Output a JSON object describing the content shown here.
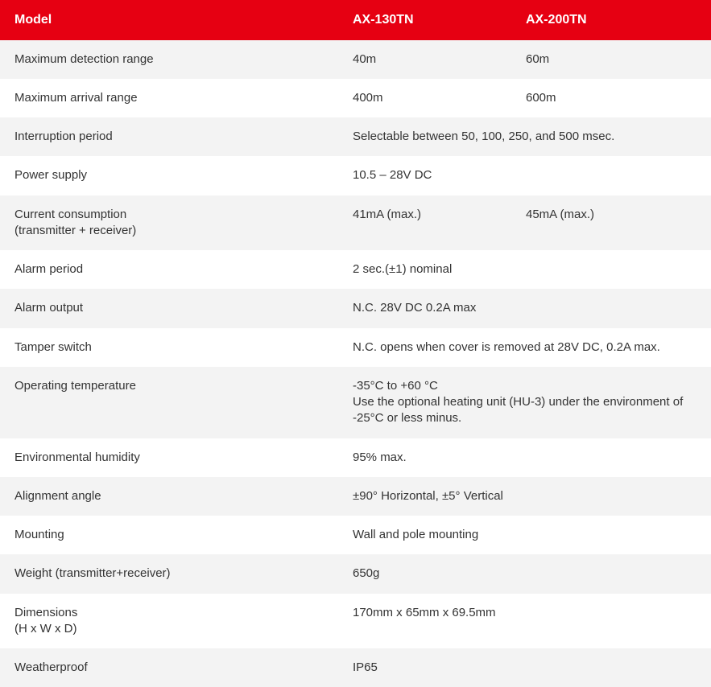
{
  "header": {
    "label_col": "Model",
    "model1": "AX-130TN",
    "model2": "AX-200TN"
  },
  "colors": {
    "header_bg": "#e60012",
    "header_text": "#ffffff",
    "row_odd_bg": "#f3f3f3",
    "row_even_bg": "#ffffff",
    "text": "#333333"
  },
  "rows": {
    "r0": {
      "label": "Maximum detection range",
      "v1": "40m",
      "v2": "60m"
    },
    "r1": {
      "label": "Maximum arrival range",
      "v1": "400m",
      "v2": "600m"
    },
    "r2": {
      "label": "Interruption period",
      "span": "Selectable between 50, 100, 250, and 500 msec."
    },
    "r3": {
      "label": "Power supply",
      "span": "10.5 – 28V DC"
    },
    "r4": {
      "label": "Current consumption",
      "label2": "(transmitter + receiver)",
      "v1": "41mA (max.)",
      "v2": "45mA (max.)"
    },
    "r5": {
      "label": "Alarm period",
      "span": "2 sec.(±1) nominal"
    },
    "r6": {
      "label": "Alarm output",
      "span": "N.C. 28V DC 0.2A max"
    },
    "r7": {
      "label": "Tamper switch",
      "span": "N.C. opens when cover is removed at 28V DC, 0.2A max."
    },
    "r8": {
      "label": "Operating temperature",
      "span": "-35°C to +60 °C",
      "span2": "Use the optional heating unit (HU-3) under the environment of -25°C or less minus."
    },
    "r9": {
      "label": "Environmental humidity",
      "span": "95% max."
    },
    "r10": {
      "label": "Alignment angle",
      "span": "±90° Horizontal, ±5° Vertical"
    },
    "r11": {
      "label": "Mounting",
      "span": "Wall and pole mounting"
    },
    "r12": {
      "label": "Weight (transmitter+receiver)",
      "span": "650g"
    },
    "r13": {
      "label": "Dimensions",
      "label2": "(H x W x D)",
      "span": "170mm x 65mm x 69.5mm"
    },
    "r14": {
      "label": "Weatherproof",
      "span": "IP65"
    }
  }
}
